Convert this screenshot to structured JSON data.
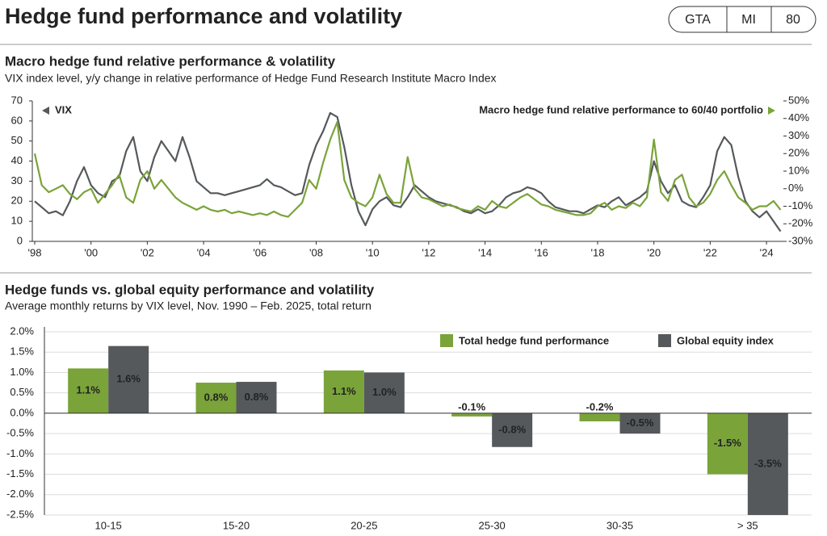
{
  "header": {
    "title": "Hedge fund performance and volatility",
    "badges": [
      "GTA",
      "MI",
      "80"
    ]
  },
  "chart_data": [
    {
      "type": "line",
      "title": "Macro hedge fund relative performance & volatility",
      "subtitle": "VIX index level, y/y change in relative performance of Hedge Fund Research Institute Macro Index",
      "x": [
        1998,
        1998.25,
        1998.5,
        1998.75,
        1999,
        1999.25,
        1999.5,
        1999.75,
        2000,
        2000.25,
        2000.5,
        2000.75,
        2001,
        2001.25,
        2001.5,
        2001.75,
        2002,
        2002.25,
        2002.5,
        2002.75,
        2003,
        2003.25,
        2003.5,
        2003.75,
        2004,
        2004.25,
        2004.5,
        2004.75,
        2005,
        2005.25,
        2005.5,
        2005.75,
        2006,
        2006.25,
        2006.5,
        2006.75,
        2007,
        2007.25,
        2007.5,
        2007.75,
        2008,
        2008.25,
        2008.5,
        2008.75,
        2009,
        2009.25,
        2009.5,
        2009.75,
        2010,
        2010.25,
        2010.5,
        2010.75,
        2011,
        2011.25,
        2011.5,
        2011.75,
        2012,
        2012.25,
        2012.5,
        2012.75,
        2013,
        2013.25,
        2013.5,
        2013.75,
        2014,
        2014.25,
        2014.5,
        2014.75,
        2015,
        2015.25,
        2015.5,
        2015.75,
        2016,
        2016.25,
        2016.5,
        2016.75,
        2017,
        2017.25,
        2017.5,
        2017.75,
        2018,
        2018.25,
        2018.5,
        2018.75,
        2019,
        2019.25,
        2019.5,
        2019.75,
        2020,
        2020.25,
        2020.5,
        2020.75,
        2021,
        2021.25,
        2021.5,
        2021.75,
        2022,
        2022.25,
        2022.5,
        2022.75,
        2023,
        2023.25,
        2023.5,
        2023.75,
        2024,
        2024.25,
        2024.5
      ],
      "series": [
        {
          "name": "VIX",
          "color": "#55595c",
          "values": [
            20,
            17,
            14,
            15,
            13,
            20,
            30,
            37,
            28,
            24,
            22,
            30,
            32,
            45,
            52,
            35,
            30,
            42,
            50,
            45,
            40,
            52,
            42,
            30,
            27,
            24,
            24,
            23,
            24,
            25,
            26,
            27,
            28,
            31,
            28,
            27,
            25,
            23,
            24,
            38,
            48,
            55,
            64,
            62,
            47,
            28,
            15,
            8,
            16,
            20,
            22,
            18,
            17,
            22,
            28,
            25,
            22,
            20,
            19,
            18,
            17,
            15,
            14,
            16,
            14,
            15,
            18,
            22,
            24,
            25,
            27,
            26,
            24,
            20,
            17,
            16,
            15,
            15,
            14,
            16,
            18,
            17,
            20,
            22,
            18,
            20,
            22,
            25,
            40,
            30,
            24,
            28,
            20,
            18,
            17,
            22,
            28,
            45,
            52,
            48,
            32,
            20,
            15,
            12,
            15,
            10,
            5
          ]
        },
        {
          "name": "Macro hedge fund relative performance to 60/40 portfolio",
          "color": "#7aa33a",
          "axis": "y2",
          "values": [
            20,
            2,
            -2,
            0,
            2,
            -3,
            -6,
            -2,
            0,
            -8,
            -3,
            2,
            8,
            -5,
            -8,
            5,
            10,
            0,
            5,
            0,
            -5,
            -8,
            -10,
            -12,
            -10,
            -12,
            -13,
            -12,
            -14,
            -13,
            -14,
            -15,
            -14,
            -15,
            -13,
            -15,
            -16,
            -12,
            -8,
            5,
            0,
            15,
            28,
            38,
            5,
            -5,
            -8,
            -10,
            -5,
            8,
            -3,
            -8,
            -8,
            18,
            0,
            -5,
            -6,
            -8,
            -10,
            -9,
            -11,
            -12,
            -13,
            -10,
            -12,
            -7,
            -10,
            -11,
            -8,
            -5,
            -3,
            -6,
            -9,
            -10,
            -12,
            -13,
            -14,
            -15,
            -15,
            -14,
            -10,
            -8,
            -12,
            -10,
            -11,
            -8,
            -10,
            -5,
            28,
            -2,
            -7,
            5,
            8,
            -5,
            -10,
            -8,
            -3,
            5,
            10,
            2,
            -5,
            -8,
            -12,
            -10,
            -10,
            -7,
            -12
          ]
        }
      ],
      "xlim": [
        1998,
        2024.6
      ],
      "xticks": [
        {
          "value": 1998,
          "label": "'98"
        },
        {
          "value": 2000,
          "label": "'00"
        },
        {
          "value": 2002,
          "label": "'02"
        },
        {
          "value": 2004,
          "label": "'04"
        },
        {
          "value": 2006,
          "label": "'06"
        },
        {
          "value": 2008,
          "label": "'08"
        },
        {
          "value": 2010,
          "label": "'10"
        },
        {
          "value": 2012,
          "label": "'12"
        },
        {
          "value": 2014,
          "label": "'14"
        },
        {
          "value": 2016,
          "label": "'16"
        },
        {
          "value": 2018,
          "label": "'18"
        },
        {
          "value": 2020,
          "label": "'20"
        },
        {
          "value": 2022,
          "label": "'22"
        },
        {
          "value": 2024,
          "label": "'24"
        }
      ],
      "ylim": [
        0,
        70
      ],
      "yticks": [
        0,
        10,
        20,
        30,
        40,
        50,
        60,
        70
      ],
      "y2lim": [
        -30,
        50
      ],
      "y2ticks": [
        {
          "value": 50,
          "label": "50%"
        },
        {
          "value": 40,
          "label": "40%"
        },
        {
          "value": 30,
          "label": "30%"
        },
        {
          "value": 20,
          "label": "20%"
        },
        {
          "value": 10,
          "label": "10%"
        },
        {
          "value": 0,
          "label": "0%"
        },
        {
          "value": -10,
          "label": "-10%"
        },
        {
          "value": -20,
          "label": "-20%"
        },
        {
          "value": -30,
          "label": "-30%"
        }
      ],
      "grid": false
    },
    {
      "type": "bar",
      "title": "Hedge funds vs. global equity performance and volatility",
      "subtitle": "Average monthly returns by VIX level, Nov. 1990 – Feb. 2025, total return",
      "categories": [
        "10-15",
        "15-20",
        "20-25",
        "25-30",
        "30-35",
        "> 35"
      ],
      "series": [
        {
          "name": "Total hedge fund performance",
          "color": "#7aa33a",
          "values": [
            1.1,
            0.75,
            1.05,
            -0.08,
            -0.2,
            -1.5
          ],
          "value_labels": [
            "1.1%",
            "0.8%",
            "1.1%",
            "-0.1%",
            "-0.2%",
            "-1.5%"
          ]
        },
        {
          "name": "Global equity index",
          "color": "#55595c",
          "values": [
            1.65,
            0.77,
            1.0,
            -0.83,
            -0.5,
            -3.5
          ],
          "value_labels": [
            "1.6%",
            "0.8%",
            "1.0%",
            "-0.8%",
            "-0.5%",
            "-3.5%"
          ]
        }
      ],
      "ylim": [
        -2.5,
        2.0
      ],
      "yticks": [
        {
          "value": 2.0,
          "label": "2.0%"
        },
        {
          "value": 1.5,
          "label": "1.5%"
        },
        {
          "value": 1.0,
          "label": "1.0%"
        },
        {
          "value": 0.5,
          "label": "0.5%"
        },
        {
          "value": 0,
          "label": "0.0%"
        },
        {
          "value": -0.5,
          "label": "-0.5%"
        },
        {
          "value": -1.0,
          "label": "-1.0%"
        },
        {
          "value": -1.5,
          "label": "-1.5%"
        },
        {
          "value": -2.0,
          "label": "-2.0%"
        },
        {
          "value": -2.5,
          "label": "-2.5%"
        }
      ],
      "grid": true,
      "legend": "top-right"
    }
  ]
}
